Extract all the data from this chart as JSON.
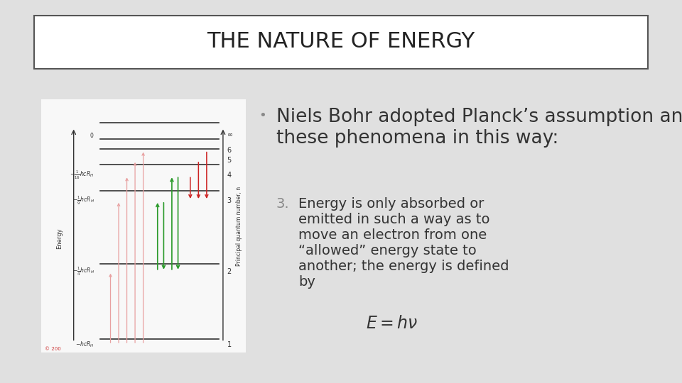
{
  "title": "THE NATURE OF ENERGY",
  "background_color": "#e0e0e0",
  "title_box_color": "#ffffff",
  "title_color": "#222222",
  "title_fontsize": 22,
  "bullet_text": "Niels Bohr adopted Planck’s assumption and explained\nthese phenomena in this way:",
  "bullet_fontsize": 19,
  "numbered_label": "3.",
  "numbered_text": "Energy is only absorbed or\nemitted in such a way as to\nmove an electron from one\n“allowed” energy state to\nanother; the energy is defined\nby",
  "numbered_fontsize": 14,
  "formula": "$E = h\\nu$",
  "formula_fontsize": 17,
  "text_color": "#333333",
  "gray_color": "#888888",
  "diagram_bg": "#f8f8f8",
  "pink": "#e8a0a0",
  "green": "#2a9a2a",
  "red": "#cc2222",
  "line_color": "#333333"
}
